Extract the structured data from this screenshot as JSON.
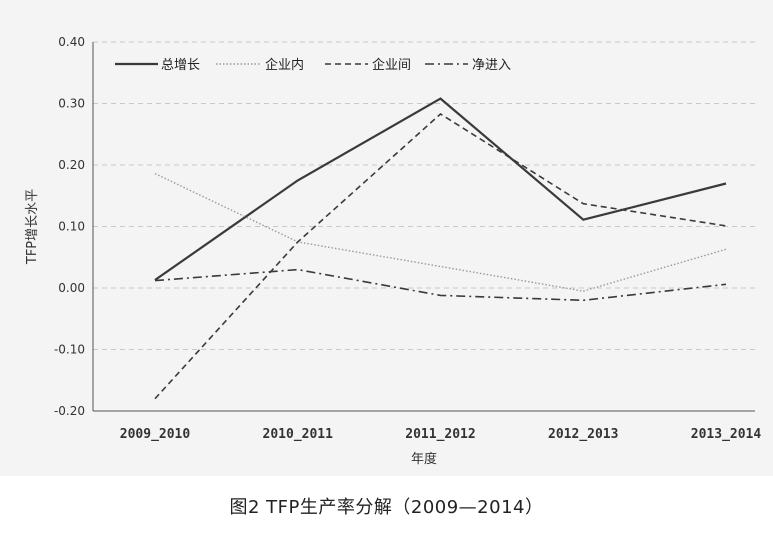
{
  "caption": "图2   TFP生产率分解（2009—2014）",
  "chart_data": {
    "type": "line",
    "title": "",
    "xlabel": "年度",
    "ylabel": "TFP增长水平",
    "categories": [
      "2009_2010",
      "2010_2011",
      "2011_2012",
      "2012_2013",
      "2013_2014"
    ],
    "ylim": [
      -0.2,
      0.4
    ],
    "yticks": [
      -0.2,
      -0.1,
      0.0,
      0.1,
      0.2,
      0.3,
      0.4
    ],
    "ytick_labels": [
      "-0.20",
      "-0.10",
      "0.00",
      "0.10",
      "0.20",
      "0.30",
      "0.40"
    ],
    "grid": "horizontal dashed",
    "legend": "top-left",
    "series": [
      {
        "name": "总增长",
        "style": "solid",
        "values": [
          0.013,
          0.175,
          0.308,
          0.111,
          0.17
        ]
      },
      {
        "name": "企业内",
        "style": "dotted",
        "values": [
          0.186,
          0.075,
          0.035,
          -0.005,
          0.063
        ]
      },
      {
        "name": "企业间",
        "style": "dashed",
        "values": [
          -0.18,
          0.075,
          0.283,
          0.137,
          0.101
        ]
      },
      {
        "name": "净进入",
        "style": "dashdot",
        "values": [
          0.012,
          0.03,
          -0.012,
          -0.02,
          0.006
        ]
      }
    ]
  }
}
